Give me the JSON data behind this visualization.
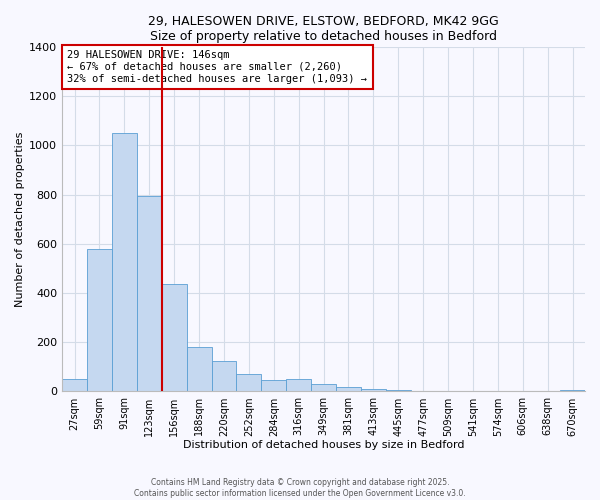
{
  "title1": "29, HALESOWEN DRIVE, ELSTOW, BEDFORD, MK42 9GG",
  "title2": "Size of property relative to detached houses in Bedford",
  "xlabel": "Distribution of detached houses by size in Bedford",
  "ylabel": "Number of detached properties",
  "bar_labels": [
    "27sqm",
    "59sqm",
    "91sqm",
    "123sqm",
    "156sqm",
    "188sqm",
    "220sqm",
    "252sqm",
    "284sqm",
    "316sqm",
    "349sqm",
    "381sqm",
    "413sqm",
    "445sqm",
    "477sqm",
    "509sqm",
    "541sqm",
    "574sqm",
    "606sqm",
    "638sqm",
    "670sqm"
  ],
  "bar_values": [
    50,
    580,
    1050,
    795,
    435,
    180,
    125,
    70,
    45,
    50,
    30,
    20,
    10,
    5,
    3,
    1,
    0,
    0,
    0,
    0,
    8
  ],
  "bar_color": "#c5d8f0",
  "bar_edge_color": "#5a9fd4",
  "vline_x_index": 4,
  "vline_color": "#cc0000",
  "ylim": [
    0,
    1400
  ],
  "yticks": [
    0,
    200,
    400,
    600,
    800,
    1000,
    1200,
    1400
  ],
  "annotation_title": "29 HALESOWEN DRIVE: 146sqm",
  "annotation_line1": "← 67% of detached houses are smaller (2,260)",
  "annotation_line2": "32% of semi-detached houses are larger (1,093) →",
  "annotation_box_color": "#ffffff",
  "annotation_box_edge": "#cc0000",
  "footnote1": "Contains HM Land Registry data © Crown copyright and database right 2025.",
  "footnote2": "Contains public sector information licensed under the Open Government Licence v3.0.",
  "bg_color": "#f8f8ff",
  "grid_color": "#d4dce8"
}
